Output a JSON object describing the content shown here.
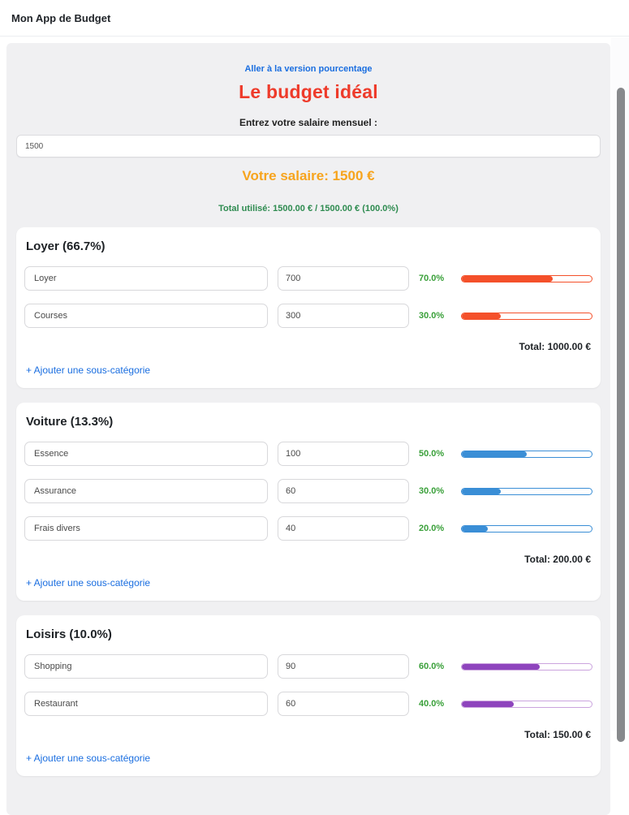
{
  "app": {
    "title": "Mon App de Budget"
  },
  "header": {
    "version_link": "Aller à la version pourcentage",
    "title": "Le budget idéal",
    "salary_label": "Entrez votre salaire mensuel :",
    "salary_input_value": "1500",
    "salary_display": "Votre salaire: 1500 €",
    "total_used": "Total utilisé: 1500.00 € / 1500.00 € (100.0%)"
  },
  "add_link_label": "+ Ajouter une sous-catégorie",
  "colors": {
    "title_red": "#ee3b2b",
    "link_blue": "#1a6ee0",
    "salary_orange": "#f7a41d",
    "total_green": "#2e8b50",
    "percent_green": "#3aa03a",
    "scrollbar_thumb": "#87898c"
  },
  "categories": [
    {
      "title": "Loyer (66.7%)",
      "bar_color": "#f4502a",
      "track_border": "#f4502a",
      "total": "Total: 1000.00 €",
      "rows": [
        {
          "name": "Loyer",
          "amount": "700",
          "percent": "70.0%"
        },
        {
          "name": "Courses",
          "amount": "300",
          "percent": "30.0%"
        }
      ]
    },
    {
      "title": "Voiture (13.3%)",
      "bar_color": "#3a8ed6",
      "track_border": "#3a8ed6",
      "total": "Total: 200.00 €",
      "rows": [
        {
          "name": "Essence",
          "amount": "100",
          "percent": "50.0%"
        },
        {
          "name": "Assurance",
          "amount": "60",
          "percent": "30.0%"
        },
        {
          "name": "Frais divers",
          "amount": "40",
          "percent": "20.0%"
        }
      ]
    },
    {
      "title": "Loisirs (10.0%)",
      "bar_color": "#8e44bd",
      "track_border": "#cba4de",
      "total": "Total: 150.00 €",
      "rows": [
        {
          "name": "Shopping",
          "amount": "90",
          "percent": "60.0%"
        },
        {
          "name": "Restaurant",
          "amount": "60",
          "percent": "40.0%"
        }
      ]
    }
  ]
}
